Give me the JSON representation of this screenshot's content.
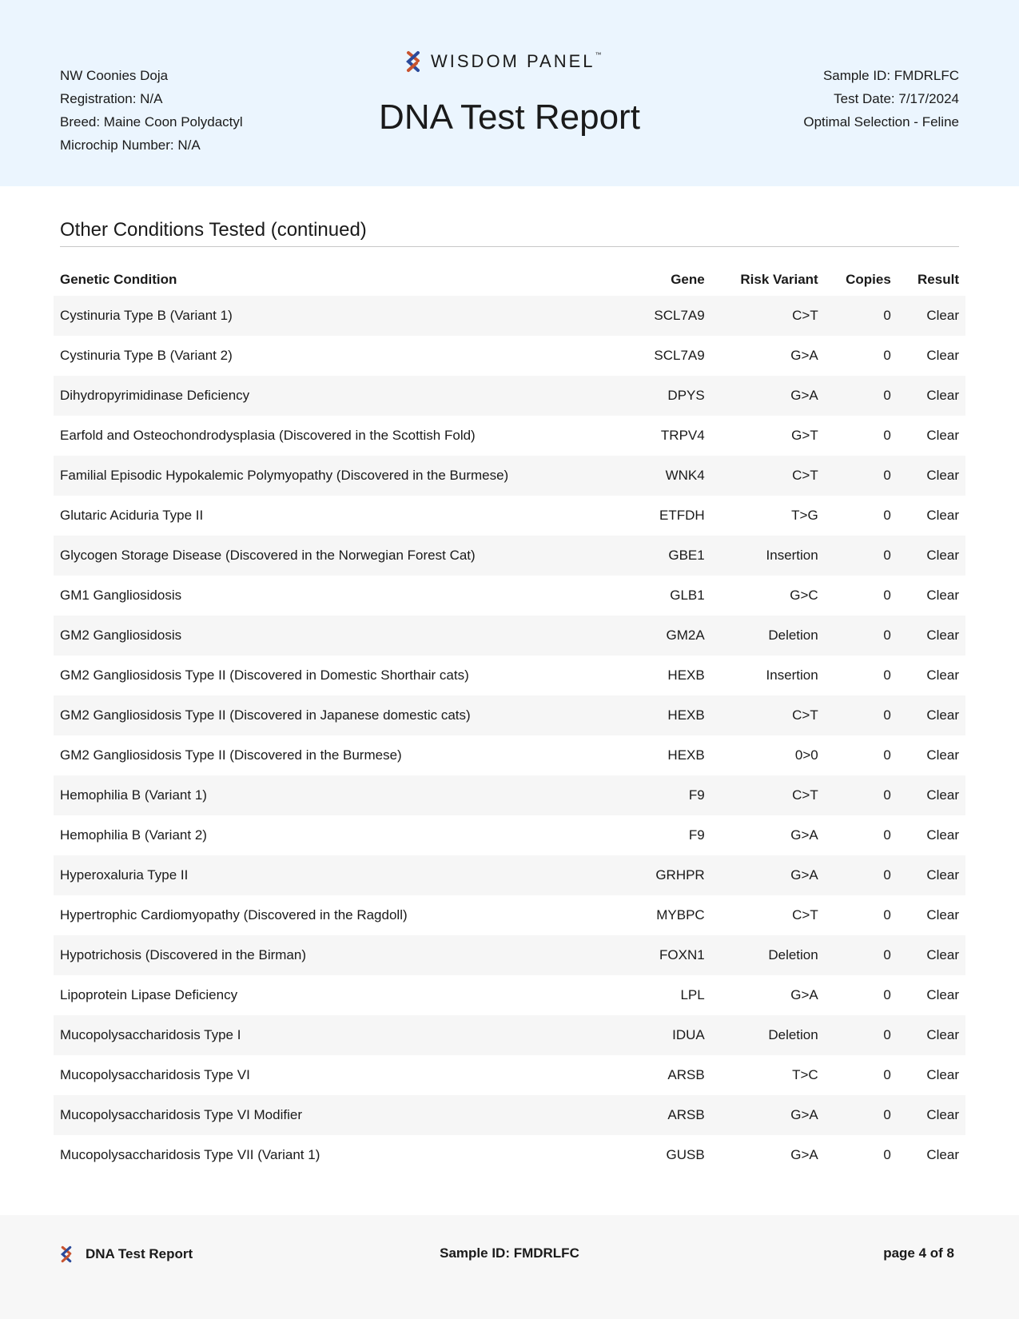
{
  "header": {
    "left": [
      "NW Coonies Doja",
      "Registration: N/A",
      "Breed: Maine Coon Polydactyl",
      "Microchip Number: N/A"
    ],
    "right": [
      "Sample ID: FMDRLFC",
      "Test Date: 7/17/2024",
      "Optimal Selection - Feline"
    ],
    "brand": "WISDOM PANEL",
    "tm": "™",
    "title": "DNA Test Report",
    "brand_colors": [
      "#c8532f",
      "#2b4a9b"
    ]
  },
  "section_title": "Other Conditions Tested (continued)",
  "columns": [
    "Genetic Condition",
    "Gene",
    "Risk Variant",
    "Copies",
    "Result"
  ],
  "rows": [
    [
      "Cystinuria Type B (Variant 1)",
      "SCL7A9",
      "C>T",
      "0",
      "Clear"
    ],
    [
      "Cystinuria Type B (Variant 2)",
      "SCL7A9",
      "G>A",
      "0",
      "Clear"
    ],
    [
      "Dihydropyrimidinase Deficiency",
      "DPYS",
      "G>A",
      "0",
      "Clear"
    ],
    [
      "Earfold and Osteochondrodysplasia (Discovered in the Scottish Fold)",
      "TRPV4",
      "G>T",
      "0",
      "Clear"
    ],
    [
      "Familial Episodic Hypokalemic Polymyopathy (Discovered in the Burmese)",
      "WNK4",
      "C>T",
      "0",
      "Clear"
    ],
    [
      "Glutaric Aciduria Type II",
      "ETFDH",
      "T>G",
      "0",
      "Clear"
    ],
    [
      "Glycogen Storage Disease (Discovered in the Norwegian Forest Cat)",
      "GBE1",
      "Insertion",
      "0",
      "Clear"
    ],
    [
      "GM1 Gangliosidosis",
      "GLB1",
      "G>C",
      "0",
      "Clear"
    ],
    [
      "GM2 Gangliosidosis",
      "GM2A",
      "Deletion",
      "0",
      "Clear"
    ],
    [
      "GM2 Gangliosidosis Type II (Discovered in Domestic Shorthair cats)",
      "HEXB",
      "Insertion",
      "0",
      "Clear"
    ],
    [
      "GM2 Gangliosidosis Type II (Discovered in Japanese domestic cats)",
      "HEXB",
      "C>T",
      "0",
      "Clear"
    ],
    [
      "GM2 Gangliosidosis Type II (Discovered in the Burmese)",
      "HEXB",
      "0>0",
      "0",
      "Clear"
    ],
    [
      "Hemophilia B (Variant 1)",
      "F9",
      "C>T",
      "0",
      "Clear"
    ],
    [
      "Hemophilia B (Variant 2)",
      "F9",
      "G>A",
      "0",
      "Clear"
    ],
    [
      "Hyperoxaluria Type II",
      "GRHPR",
      "G>A",
      "0",
      "Clear"
    ],
    [
      "Hypertrophic Cardiomyopathy (Discovered in the Ragdoll)",
      "MYBPC",
      "C>T",
      "0",
      "Clear"
    ],
    [
      "Hypotrichosis (Discovered in the Birman)",
      "FOXN1",
      "Deletion",
      "0",
      "Clear"
    ],
    [
      "Lipoprotein Lipase Deficiency",
      "LPL",
      "G>A",
      "0",
      "Clear"
    ],
    [
      "Mucopolysaccharidosis Type I",
      "IDUA",
      "Deletion",
      "0",
      "Clear"
    ],
    [
      "Mucopolysaccharidosis Type VI",
      "ARSB",
      "T>C",
      "0",
      "Clear"
    ],
    [
      "Mucopolysaccharidosis Type VI Modifier",
      "ARSB",
      "G>A",
      "0",
      "Clear"
    ],
    [
      "Mucopolysaccharidosis Type VII (Variant 1)",
      "GUSB",
      "G>A",
      "0",
      "Clear"
    ]
  ],
  "footer": {
    "title": "DNA Test Report",
    "sample": "Sample ID: FMDRLFC",
    "page": "page 4 of 8"
  }
}
